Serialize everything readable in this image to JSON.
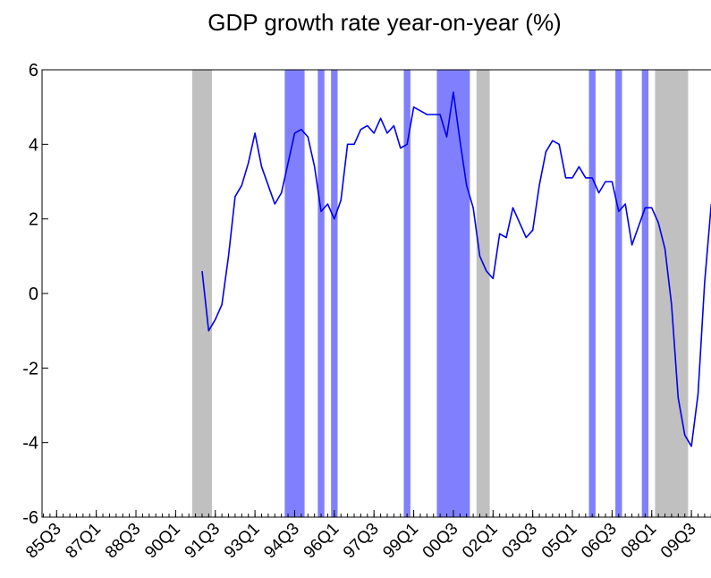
{
  "chart_data": {
    "type": "line",
    "title": "GDP growth rate year-on-year (%)",
    "xlabel": "",
    "ylabel": "",
    "ylim": [
      -6,
      6
    ],
    "yticks": [
      "6",
      "4",
      "2",
      "0",
      "-2",
      "-4",
      "-6"
    ],
    "yticks_values": [
      6,
      4,
      2,
      0,
      -2,
      -4,
      -6
    ],
    "x_period": {
      "start": "85Q1",
      "end": "10Q2",
      "frequency": "quarterly"
    },
    "xtick_labels": [
      "85Q3",
      "87Q1",
      "88Q3",
      "90Q1",
      "91Q3",
      "93Q1",
      "94Q3",
      "96Q1",
      "97Q3",
      "99Q1",
      "00Q3",
      "02Q1",
      "03Q3",
      "05Q1",
      "06Q3",
      "08Q1",
      "09Q3"
    ],
    "grid": false,
    "legend": "none",
    "colors": {
      "line": "#0000ee",
      "blue_band": "#8080ff",
      "gray_band": "#c0c0c0"
    },
    "series": [
      {
        "x": [
          "91Q1",
          "91Q2",
          "91Q3",
          "91Q4",
          "92Q1",
          "92Q2",
          "92Q3",
          "92Q4",
          "93Q1",
          "93Q2",
          "93Q3",
          "93Q4",
          "94Q1",
          "94Q2",
          "94Q3",
          "94Q4",
          "95Q1",
          "95Q2",
          "95Q3",
          "95Q4",
          "96Q1",
          "96Q2",
          "96Q3",
          "96Q4",
          "97Q1",
          "97Q2",
          "97Q3",
          "97Q4",
          "98Q1",
          "98Q2",
          "98Q3",
          "98Q4",
          "99Q1",
          "99Q2",
          "99Q3",
          "99Q4",
          "00Q1",
          "00Q2",
          "00Q3",
          "00Q4",
          "01Q1",
          "01Q2",
          "01Q3",
          "01Q4",
          "02Q1",
          "02Q2",
          "02Q3",
          "02Q4",
          "03Q1",
          "03Q2",
          "03Q3",
          "03Q4",
          "04Q1",
          "04Q2",
          "04Q3",
          "04Q4",
          "05Q1",
          "05Q2",
          "05Q3",
          "05Q4",
          "06Q1",
          "06Q2",
          "06Q3",
          "06Q4",
          "07Q1",
          "07Q2",
          "07Q3",
          "07Q4",
          "08Q1",
          "08Q2",
          "08Q3",
          "08Q4",
          "09Q1",
          "09Q2",
          "09Q3",
          "09Q4",
          "10Q1",
          "10Q2"
        ],
        "values": [
          0.6,
          -1.0,
          -0.7,
          -0.3,
          1.0,
          2.6,
          2.9,
          3.5,
          4.3,
          3.4,
          2.9,
          2.4,
          2.7,
          3.5,
          4.3,
          4.4,
          4.2,
          3.4,
          2.2,
          2.4,
          2.0,
          2.5,
          4.0,
          4.0,
          4.4,
          4.5,
          4.3,
          4.7,
          4.3,
          4.5,
          3.9,
          4.0,
          5.0,
          4.9,
          4.8,
          4.8,
          4.8,
          4.2,
          5.4,
          4.1,
          2.9,
          2.3,
          1.0,
          0.6,
          0.4,
          1.6,
          1.5,
          2.3,
          1.9,
          1.5,
          1.7,
          2.9,
          3.8,
          4.1,
          4.0,
          3.1,
          3.1,
          3.4,
          3.1,
          3.1,
          2.7,
          3.0,
          3.0,
          2.2,
          2.4,
          1.3,
          1.8,
          2.3,
          2.3,
          1.9,
          1.2,
          -0.3,
          -2.8,
          -3.8,
          -4.1,
          -2.7,
          0.3,
          2.4
        ]
      }
    ],
    "shaded_periods": [
      {
        "from": "90Q4",
        "to": "91Q2",
        "color": "gray"
      },
      {
        "from": "94Q2",
        "to": "94Q4",
        "color": "blue"
      },
      {
        "from": "95Q3",
        "to": "95Q3",
        "color": "blue"
      },
      {
        "from": "96Q1",
        "to": "96Q1",
        "color": "blue"
      },
      {
        "from": "98Q4",
        "to": "98Q4",
        "color": "blue"
      },
      {
        "from": "00Q1",
        "to": "01Q1",
        "color": "blue"
      },
      {
        "from": "01Q3",
        "to": "01Q4",
        "color": "gray"
      },
      {
        "from": "05Q4",
        "to": "05Q4",
        "color": "blue"
      },
      {
        "from": "06Q4",
        "to": "06Q4",
        "color": "blue"
      },
      {
        "from": "07Q4",
        "to": "07Q4",
        "color": "blue"
      },
      {
        "from": "08Q2",
        "to": "09Q2",
        "color": "gray"
      }
    ]
  }
}
